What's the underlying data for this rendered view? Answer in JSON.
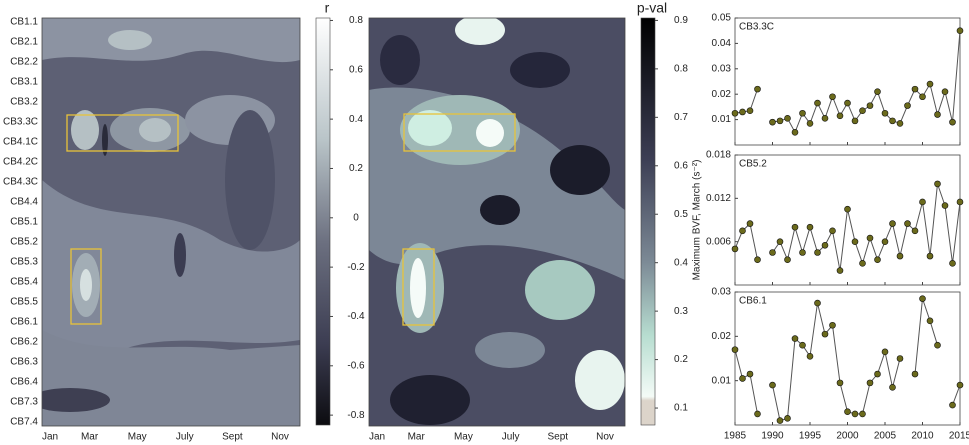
{
  "chart_data": [
    {
      "type": "contour",
      "categories": [
        "CB1.1",
        "CB2.1",
        "CB2.2",
        "CB3.1",
        "CB3.2",
        "CB3.3C",
        "CB4.1C",
        "CB4.2C",
        "CB4.3C",
        "CB4.4",
        "CB5.1",
        "CB5.2",
        "CB5.3",
        "CB5.4",
        "CB5.5",
        "CB6.1",
        "CB6.2",
        "CB6.3",
        "CB6.4",
        "CB7.3",
        "CB7.4"
      ],
      "category_colors": [
        "#222",
        "#222",
        "#222",
        "#c1272d",
        "#222",
        "#c1272d",
        "#222",
        "#222",
        "#222",
        "#222",
        "#222",
        "#c1272d",
        "#222",
        "#222",
        "#222",
        "#c1272d",
        "#222",
        "#222",
        "#222",
        "#222",
        "#222"
      ],
      "x_categories": [
        "Jan",
        "Mar",
        "May",
        "July",
        "Sept",
        "Nov"
      ],
      "colorbar": {
        "label": "r",
        "lim": [
          -0.84,
          0.81
        ],
        "ticks": [
          0.8,
          0.6,
          0.4,
          0.2,
          0,
          -0.2,
          -0.4,
          -0.6,
          -0.8
        ]
      }
    },
    {
      "type": "contour",
      "x_categories": [
        "Jan",
        "Mar",
        "May",
        "July",
        "Sept",
        "Nov"
      ],
      "colorbar": {
        "label": "p-val",
        "lim": [
          0.065,
          0.905
        ],
        "ticks": [
          0.9,
          0.8,
          0.7,
          0.6,
          0.5,
          0.4,
          0.3,
          0.2,
          0.1
        ]
      }
    },
    {
      "type": "line",
      "title": "CB3.3C",
      "color": "#6b6a1c",
      "x": [
        1985,
        1986,
        1987,
        1988,
        1989,
        1990,
        1991,
        1992,
        1993,
        1994,
        1995,
        1996,
        1997,
        1998,
        1999,
        2000,
        2001,
        2002,
        2003,
        2004,
        2005,
        2006,
        2007,
        2008,
        2009,
        2010,
        2011,
        2012,
        2013,
        2014,
        2015
      ],
      "values": [
        0.0125,
        0.013,
        0.0135,
        0.022,
        null,
        0.009,
        0.0095,
        0.0105,
        0.005,
        0.0125,
        0.0085,
        0.0165,
        0.0105,
        0.019,
        0.0115,
        0.0165,
        0.0095,
        0.0135,
        0.0155,
        0.021,
        0.0125,
        0.0095,
        0.0085,
        0.0155,
        0.022,
        0.019,
        0.024,
        0.012,
        0.021,
        0.009,
        0.045
      ],
      "xlim": [
        1985,
        2015
      ],
      "xticks": [
        1985,
        1990,
        1995,
        2000,
        2005,
        2010,
        2015
      ],
      "ylim": [
        0,
        0.05
      ],
      "yticks": [
        0.01,
        0.02,
        0.03,
        0.04,
        0.05
      ]
    },
    {
      "type": "line",
      "title": "CB5.2",
      "color": "#6b6a1c",
      "ylabel": "Maximum BVF, March (s⁻²)",
      "x": [
        1985,
        1986,
        1987,
        1988,
        1989,
        1990,
        1991,
        1992,
        1993,
        1994,
        1995,
        1996,
        1997,
        1998,
        1999,
        2000,
        2001,
        2002,
        2003,
        2004,
        2005,
        2006,
        2007,
        2008,
        2009,
        2010,
        2011,
        2012,
        2013,
        2014,
        2015
      ],
      "values": [
        0.005,
        0.0075,
        0.0085,
        0.0035,
        null,
        0.0045,
        0.006,
        0.0035,
        0.008,
        0.0045,
        0.008,
        0.0045,
        0.0055,
        0.0075,
        0.002,
        0.0105,
        0.006,
        0.003,
        0.0065,
        0.0035,
        0.006,
        0.0085,
        0.004,
        0.0085,
        0.0075,
        0.0115,
        0.004,
        0.014,
        0.011,
        0.003,
        0.0115
      ],
      "xlim": [
        1985,
        2015
      ],
      "xticks": [
        1985,
        1990,
        1995,
        2000,
        2005,
        2010,
        2015
      ],
      "ylim": [
        0,
        0.018
      ],
      "yticks": [
        0.006,
        0.012,
        0.018
      ]
    },
    {
      "type": "line",
      "title": "CB6.1",
      "color": "#6b6a1c",
      "x": [
        1985,
        1986,
        1987,
        1988,
        1989,
        1990,
        1991,
        1992,
        1993,
        1994,
        1995,
        1996,
        1997,
        1998,
        1999,
        2000,
        2001,
        2002,
        2003,
        2004,
        2005,
        2006,
        2007,
        2008,
        2009,
        2010,
        2011,
        2012,
        2013,
        2014,
        2015
      ],
      "values": [
        0.017,
        0.0105,
        0.0115,
        0.0025,
        null,
        0.009,
        0.001,
        0.0015,
        0.0195,
        0.018,
        0.0155,
        0.0275,
        0.0205,
        0.0225,
        0.0095,
        0.003,
        0.0025,
        0.0025,
        0.0095,
        0.0115,
        0.0165,
        0.0085,
        0.015,
        null,
        0.0115,
        0.0285,
        0.0235,
        0.018,
        null,
        0.0045,
        0.009
      ],
      "xlim": [
        1985,
        2015
      ],
      "xticks": [
        1985,
        1990,
        1995,
        2000,
        2005,
        2010,
        2015
      ],
      "ylim": [
        0,
        0.03
      ],
      "yticks": [
        0.01,
        0.02,
        0.03
      ],
      "show_xtick_labels": true
    }
  ]
}
